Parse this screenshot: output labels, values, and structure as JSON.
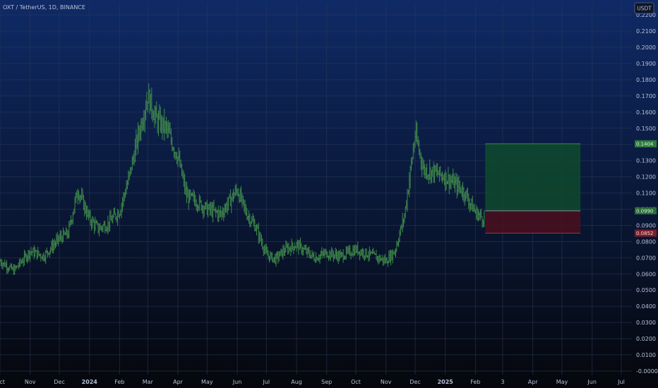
{
  "header": {
    "title": "OXT / TetherUS, 1D, BINANCE",
    "currency_badge": "USDT"
  },
  "colors": {
    "background_top": "#0f2a66",
    "background_bottom": "#05070c",
    "bars": "#3f8a4b",
    "profit_zone": "#0f4a2e",
    "loss_zone": "#4a0f1f",
    "target_label": "#2f7a3c",
    "stop_label": "#7a1f2a",
    "current_label": "#2c6b3a"
  },
  "chart_data": {
    "type": "ohlc",
    "title": "OXT / TetherUS, 1D, BINANCE",
    "ylabel": "USDT",
    "ylim": [
      -0.0022,
      0.2275
    ],
    "x_ticks": [
      "Oct",
      "Nov",
      "Dec",
      "2024",
      "Feb",
      "Mar",
      "Apr",
      "May",
      "Jun",
      "Jul",
      "Aug",
      "Sep",
      "Oct",
      "Nov",
      "Dec",
      "2025",
      "Feb",
      "3",
      "Apr",
      "May",
      "Jun",
      "Jul"
    ],
    "y_ticks": [
      "0.2200",
      "0.2100",
      "0.2000",
      "0.1900",
      "0.1800",
      "0.1700",
      "0.1600",
      "0.1500",
      "0.1400",
      "0.1300",
      "0.1200",
      "0.1100",
      "0.1000",
      "0.0900",
      "0.0800",
      "0.0700",
      "0.0600",
      "0.0500",
      "0.0400",
      "0.0300",
      "0.0200",
      "0.0100",
      "-0.0000"
    ],
    "grid": true,
    "series": [
      {
        "dates": [
          "2023-10-01",
          "2023-10-15",
          "2023-11-01",
          "2023-11-15",
          "2023-12-01",
          "2023-12-10",
          "2023-12-20",
          "2024-01-01",
          "2024-01-10",
          "2024-01-20",
          "2024-02-01",
          "2024-02-10",
          "2024-02-20",
          "2024-03-01",
          "2024-03-10",
          "2024-03-20",
          "2024-04-01",
          "2024-04-10",
          "2024-04-20",
          "2024-05-01",
          "2024-05-15",
          "2024-06-01",
          "2024-06-10",
          "2024-06-20",
          "2024-07-01",
          "2024-07-10",
          "2024-07-20",
          "2024-08-01",
          "2024-08-10",
          "2024-08-20",
          "2024-09-01",
          "2024-09-15",
          "2024-10-01",
          "2024-10-15",
          "2024-11-01",
          "2024-11-10",
          "2024-11-20",
          "2024-12-01",
          "2024-12-10",
          "2024-12-20",
          "2025-01-01",
          "2025-01-10",
          "2025-01-20",
          "2025-02-01",
          "2025-02-10"
        ],
        "close": [
          0.068,
          0.062,
          0.074,
          0.071,
          0.082,
          0.085,
          0.112,
          0.094,
          0.088,
          0.091,
          0.099,
          0.118,
          0.145,
          0.17,
          0.155,
          0.15,
          0.132,
          0.108,
          0.105,
          0.1,
          0.097,
          0.112,
          0.098,
          0.089,
          0.072,
          0.069,
          0.075,
          0.078,
          0.074,
          0.07,
          0.073,
          0.071,
          0.075,
          0.072,
          0.068,
          0.074,
          0.096,
          0.146,
          0.124,
          0.123,
          0.12,
          0.116,
          0.111,
          0.098,
          0.094
        ]
      }
    ],
    "annotations": {
      "target_price": "0.1404",
      "current_price": "0.0990",
      "stop_price": "0.0852"
    },
    "position": {
      "start_date": "2025-02-11",
      "end_date": "2025-05-20",
      "entry": 0.099,
      "target": 0.1404,
      "stop": 0.0852
    }
  }
}
